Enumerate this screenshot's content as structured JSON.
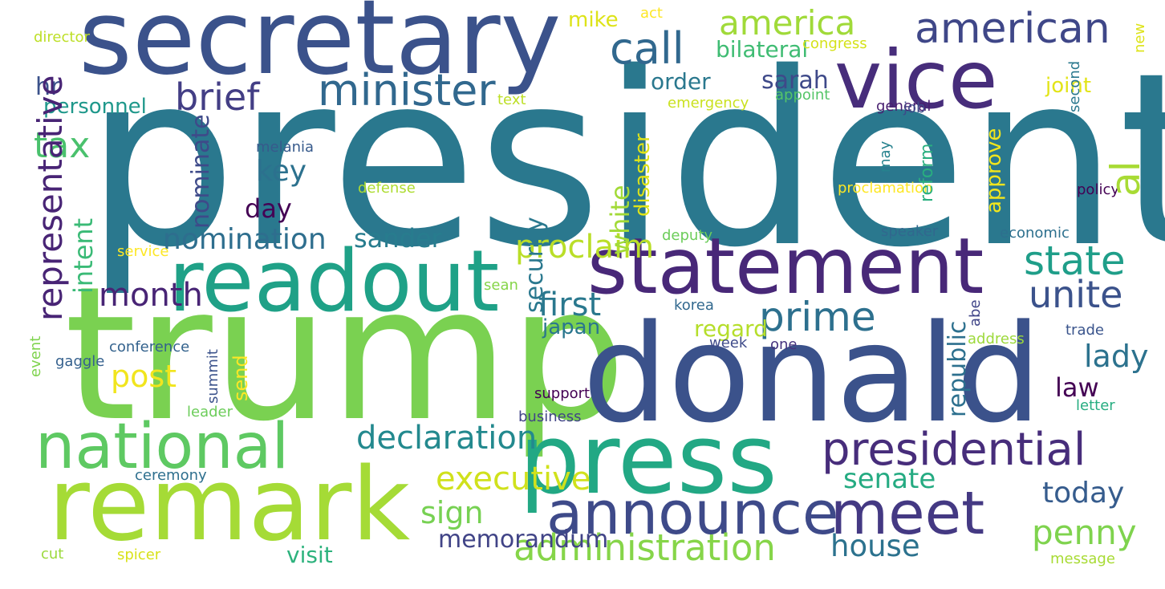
{
  "words": [
    {
      "text": "president",
      "color": "#2a788e"
    },
    {
      "text": "trump",
      "color": "#7ad151"
    },
    {
      "text": "donald",
      "color": "#3b528b"
    },
    {
      "text": "secretary",
      "color": "#3b528b"
    },
    {
      "text": "remark",
      "color": "#a5db36"
    },
    {
      "text": "press",
      "color": "#22a884"
    },
    {
      "text": "readout",
      "color": "#1fa187"
    },
    {
      "text": "statement",
      "color": "#482878"
    },
    {
      "text": "vice",
      "color": "#472d7b"
    },
    {
      "text": "national",
      "color": "#5ec962"
    },
    {
      "text": "announce",
      "color": "#3e4a89"
    },
    {
      "text": "meet",
      "color": "#443983"
    },
    {
      "text": "presidential",
      "color": "#472d7b"
    },
    {
      "text": "administration",
      "color": "#86d549"
    },
    {
      "text": "american",
      "color": "#3f4788"
    },
    {
      "text": "minister",
      "color": "#31688e"
    },
    {
      "text": "call",
      "color": "#31688e"
    },
    {
      "text": "america",
      "color": "#a0da39"
    },
    {
      "text": "brief",
      "color": "#433e85"
    },
    {
      "text": "state",
      "color": "#1f9e89"
    },
    {
      "text": "unite",
      "color": "#3b528b"
    },
    {
      "text": "prime",
      "color": "#2d708e"
    },
    {
      "text": "penny",
      "color": "#7fd34e"
    },
    {
      "text": "house",
      "color": "#2c728e"
    },
    {
      "text": "declaration",
      "color": "#23898e"
    },
    {
      "text": "first",
      "color": "#2a788e"
    },
    {
      "text": "senate",
      "color": "#25ab82"
    },
    {
      "text": "executive",
      "color": "#d0e11c"
    },
    {
      "text": "sign",
      "color": "#77d153"
    },
    {
      "text": "visit",
      "color": "#2db27d"
    },
    {
      "text": "memorandum",
      "color": "#414487"
    },
    {
      "text": "today",
      "color": "#365c8d"
    },
    {
      "text": "lady",
      "color": "#2c728e"
    },
    {
      "text": "law",
      "color": "#440154"
    },
    {
      "text": "sander",
      "color": "#287c8e"
    },
    {
      "text": "nomination",
      "color": "#2e6e8e"
    },
    {
      "text": "proclaim",
      "color": "#bade28"
    },
    {
      "text": "key",
      "color": "#2c718e"
    },
    {
      "text": "day",
      "color": "#440154"
    },
    {
      "text": "month",
      "color": "#482475"
    },
    {
      "text": "post",
      "color": "#f1e51d"
    },
    {
      "text": "tax",
      "color": "#4ac16d"
    },
    {
      "text": "hr",
      "color": "#3b528b"
    },
    {
      "text": "personnel",
      "color": "#1f988b"
    },
    {
      "text": "bilateral",
      "color": "#3fbc73"
    },
    {
      "text": "order",
      "color": "#2a788e"
    },
    {
      "text": "sarah",
      "color": "#3e4989"
    },
    {
      "text": "joint",
      "color": "#e2e418"
    },
    {
      "text": "mike",
      "color": "#dde318"
    },
    {
      "text": "act",
      "color": "#fde725"
    },
    {
      "text": "congress",
      "color": "#d5e21a"
    },
    {
      "text": "director",
      "color": "#bddf26"
    },
    {
      "text": "text",
      "color": "#bddf26"
    },
    {
      "text": "emergency",
      "color": "#cae11f"
    },
    {
      "text": "appoint",
      "color": "#54c568"
    },
    {
      "text": "general",
      "color": "#481f70"
    },
    {
      "text": "job",
      "color": "#3e4a89"
    },
    {
      "text": "melania",
      "color": "#375a8c"
    },
    {
      "text": "defense",
      "color": "#addc30"
    },
    {
      "text": "proclamation",
      "color": "#fde725"
    },
    {
      "text": "policy",
      "color": "#440154"
    },
    {
      "text": "speaker",
      "color": "#31688e"
    },
    {
      "text": "economic",
      "color": "#2d708e"
    },
    {
      "text": "deputy",
      "color": "#6ccd5a"
    },
    {
      "text": "service",
      "color": "#fde725"
    },
    {
      "text": "sean",
      "color": "#86d549"
    },
    {
      "text": "korea",
      "color": "#31688e"
    },
    {
      "text": "japan",
      "color": "#2a768e"
    },
    {
      "text": "regard",
      "color": "#b5de2b"
    },
    {
      "text": "week",
      "color": "#3e4a89"
    },
    {
      "text": "one",
      "color": "#46337e"
    },
    {
      "text": "address",
      "color": "#9dd93b"
    },
    {
      "text": "trade",
      "color": "#3a548c"
    },
    {
      "text": "letter",
      "color": "#27ad81"
    },
    {
      "text": "message",
      "color": "#a8db34"
    },
    {
      "text": "business",
      "color": "#414487"
    },
    {
      "text": "support",
      "color": "#440154"
    },
    {
      "text": "leader",
      "color": "#6ccd5a"
    },
    {
      "text": "ceremony",
      "color": "#2e6f8e"
    },
    {
      "text": "conference",
      "color": "#33628d"
    },
    {
      "text": "gaggle",
      "color": "#34608d"
    },
    {
      "text": "cut",
      "color": "#9bd93c"
    },
    {
      "text": "spicer",
      "color": "#d8e219"
    },
    {
      "text": "representative",
      "color": "#482475"
    },
    {
      "text": "intent",
      "color": "#3aba76"
    },
    {
      "text": "nominate",
      "color": "#3e4a89"
    },
    {
      "text": "security",
      "color": "#2a788e"
    },
    {
      "text": "white",
      "color": "#a2da37"
    },
    {
      "text": "disaster",
      "color": "#dfe318"
    },
    {
      "text": "republic",
      "color": "#2d708e"
    },
    {
      "text": "approve",
      "color": "#f1e51d"
    },
    {
      "text": "reform",
      "color": "#29af7f"
    },
    {
      "text": "may",
      "color": "#26828e"
    },
    {
      "text": "second",
      "color": "#2a788e"
    },
    {
      "text": "new",
      "color": "#dde318"
    },
    {
      "text": "abe",
      "color": "#404588"
    },
    {
      "text": "al",
      "color": "#a8db34"
    },
    {
      "text": "send",
      "color": "#fde725"
    },
    {
      "text": "summit",
      "color": "#3b528b"
    },
    {
      "text": "event",
      "color": "#7fd34e"
    }
  ]
}
